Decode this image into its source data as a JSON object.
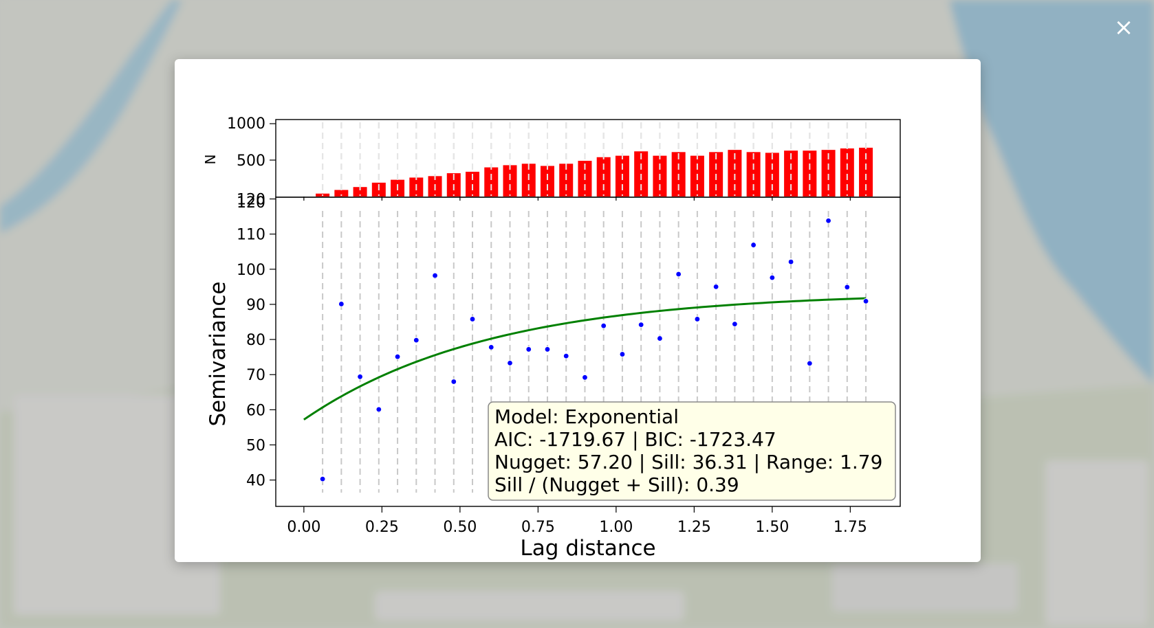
{
  "close_label": "×",
  "colors": {
    "bar": "#ff0000",
    "point": "#0000ff",
    "model_line": "#008000",
    "grid": "#c8c8c8",
    "annotation_bg": "#ffffe8"
  },
  "chart_data": [
    {
      "type": "bar",
      "ylabel": "N",
      "ylim": [
        0,
        1000
      ],
      "yticks": [
        "1000",
        "500"
      ],
      "x": [
        0.06,
        0.12,
        0.18,
        0.24,
        0.3,
        0.36,
        0.42,
        0.48,
        0.54,
        0.6,
        0.66,
        0.72,
        0.78,
        0.84,
        0.9,
        0.96,
        1.02,
        1.08,
        1.14,
        1.2,
        1.26,
        1.32,
        1.38,
        1.44,
        1.5,
        1.56,
        1.62,
        1.68,
        1.74,
        1.8
      ],
      "values": [
        40,
        90,
        130,
        190,
        230,
        260,
        280,
        320,
        340,
        400,
        430,
        450,
        420,
        450,
        490,
        540,
        560,
        620,
        560,
        610,
        560,
        610,
        640,
        610,
        600,
        630,
        630,
        640,
        660,
        670
      ],
      "grid": "vertical dashed at each lag"
    },
    {
      "type": "scatter",
      "xlabel": "Lag distance",
      "ylabel": "Semivariance",
      "xlim": [
        -0.09,
        1.91
      ],
      "ylim": [
        32.5,
        120.5
      ],
      "yticks": [
        "120",
        "110",
        "100",
        "90",
        "80",
        "70",
        "60",
        "50",
        "40"
      ],
      "xticks": [
        "0.00",
        "0.25",
        "0.50",
        "0.75",
        "1.00",
        "1.25",
        "1.50",
        "1.75"
      ],
      "x": [
        0.06,
        0.12,
        0.18,
        0.24,
        0.3,
        0.36,
        0.42,
        0.48,
        0.54,
        0.6,
        0.66,
        0.72,
        0.78,
        0.84,
        0.9,
        0.96,
        1.02,
        1.08,
        1.14,
        1.2,
        1.26,
        1.32,
        1.38,
        1.44,
        1.5,
        1.56,
        1.62,
        1.68,
        1.74,
        1.8
      ],
      "values": [
        40.3,
        90.1,
        69.4,
        60.1,
        75.1,
        79.8,
        98.2,
        68.0,
        85.8,
        77.8,
        73.3,
        77.2,
        77.2,
        75.3,
        69.2,
        83.9,
        75.8,
        84.2,
        80.3,
        98.6,
        85.8,
        95.0,
        84.4,
        106.9,
        97.6,
        102.1,
        73.2,
        113.8,
        94.9,
        90.9
      ],
      "model": {
        "name": "Exponential",
        "nugget": 57.2,
        "sill": 36.31,
        "range": 1.79
      },
      "annotation": [
        "Model: Exponential",
        "AIC: -1719.67 | BIC: -1723.47",
        "Nugget: 57.20 | Sill: 36.31 | Range: 1.79",
        "Sill / (Nugget + Sill): 0.39"
      ],
      "bottom_left_label": "120",
      "grid": "vertical dashed at each lag",
      "legend": "none"
    }
  ]
}
